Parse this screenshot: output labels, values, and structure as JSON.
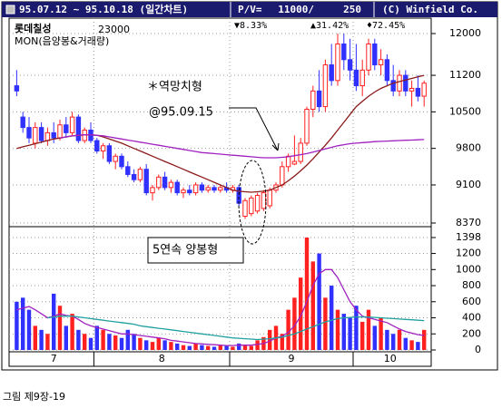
{
  "chart_data": {
    "type": "candlestick",
    "title": "95.07.12 ~ 95.10.18 (일간차트)",
    "pv_label": "P/V=",
    "pv_price": "11000/",
    "pv_volume": "250",
    "copyright": "(C) Winfield Co.",
    "stats": [
      "▼8.33%",
      "▲31.42%",
      "♦72.45%"
    ],
    "stock_name": "롯데칠성",
    "stock_price": "23000",
    "indicator": "MON(음양봉&거래량)",
    "annotations": [
      "＊역망치형",
      "@95.09.15",
      "5연속 양봉형"
    ],
    "caption": "그림 제9장-19",
    "categories": [
      "7",
      null,
      null,
      null,
      null,
      null,
      null,
      null,
      null,
      null,
      null,
      null,
      null,
      "8",
      null,
      null,
      null,
      null,
      null,
      null,
      null,
      null,
      null,
      null,
      null,
      null,
      null,
      null,
      null,
      null,
      null,
      null,
      null,
      null,
      null,
      "9",
      null,
      null,
      null,
      null,
      null,
      null,
      null,
      null,
      null,
      null,
      null,
      null,
      null,
      null,
      null,
      null,
      null,
      null,
      null,
      "10",
      null,
      null,
      null,
      null,
      null,
      null,
      null,
      null,
      null,
      null,
      null
    ],
    "open": [
      11000,
      10400,
      10200,
      9900,
      10200,
      9950,
      10100,
      10000,
      10250,
      10100,
      10400,
      9950,
      10150,
      9950,
      9750,
      9850,
      9550,
      9650,
      9450,
      9300,
      9200,
      9400,
      8950,
      9050,
      9250,
      9050,
      9150,
      8950,
      9000,
      8950,
      9100,
      9000,
      9050,
      9000,
      9050,
      9000,
      9050,
      8500,
      8550,
      8600,
      8650,
      8700,
      9000,
      9100,
      9450,
      9500,
      9550,
      9900,
      10550,
      10900,
      10600,
      11400,
      11100,
      11800,
      11500,
      11300,
      11000,
      11300,
      11800,
      11400,
      11500,
      11100,
      10900,
      11200,
      10900,
      10950,
      10800
    ],
    "high": [
      11300,
      10500,
      10400,
      10300,
      10300,
      10200,
      10300,
      10350,
      10400,
      10500,
      10450,
      10200,
      10300,
      10000,
      9900,
      9900,
      9700,
      9700,
      9550,
      9400,
      9450,
      9500,
      9100,
      9300,
      9350,
      9200,
      9200,
      9050,
      9100,
      9150,
      9150,
      9100,
      9100,
      9100,
      9150,
      9100,
      9100,
      8850,
      8900,
      8950,
      9000,
      9050,
      9150,
      9550,
      9700,
      10050,
      10000,
      10600,
      11000,
      11300,
      11500,
      11800,
      12000,
      12000,
      11900,
      11800,
      11500,
      11900,
      11900,
      11700,
      11600,
      11400,
      11300,
      11300,
      11100,
      11200,
      11100
    ],
    "low": [
      10800,
      10100,
      9900,
      9800,
      9900,
      9850,
      9900,
      9950,
      10000,
      10050,
      9900,
      9900,
      9900,
      9700,
      9600,
      9500,
      9400,
      9400,
      9250,
      9150,
      9150,
      8900,
      8800,
      9000,
      9000,
      8950,
      8900,
      8850,
      8900,
      8900,
      8950,
      8950,
      8950,
      8950,
      8950,
      8950,
      8700,
      8450,
      8500,
      8550,
      8600,
      8650,
      8950,
      9050,
      9350,
      9480,
      9500,
      9850,
      10400,
      10500,
      10500,
      11000,
      11000,
      11300,
      11100,
      10900,
      10800,
      11200,
      11300,
      11200,
      11000,
      10800,
      10800,
      10800,
      10600,
      10700,
      10600
    ],
    "close": [
      10900,
      10200,
      10000,
      10200,
      9950,
      10100,
      10000,
      10250,
      10100,
      10400,
      9950,
      10150,
      9950,
      9750,
      9850,
      9550,
      9650,
      9450,
      9300,
      9200,
      9400,
      8950,
      9050,
      9250,
      9050,
      9150,
      8950,
      9000,
      8950,
      9100,
      9000,
      9050,
      9000,
      9050,
      9000,
      9050,
      8750,
      8800,
      8850,
      8900,
      8950,
      9000,
      9100,
      9450,
      9650,
      9550,
      9900,
      10550,
      10900,
      10600,
      11400,
      11100,
      11800,
      11500,
      11300,
      11000,
      11300,
      11800,
      11400,
      11500,
      11100,
      10900,
      11200,
      10900,
      10950,
      10800,
      11050
    ],
    "volume": [
      600,
      650,
      500,
      300,
      250,
      200,
      700,
      550,
      300,
      450,
      250,
      200,
      150,
      300,
      250,
      200,
      180,
      150,
      250,
      200,
      150,
      120,
      100,
      150,
      120,
      100,
      80,
      60,
      50,
      80,
      60,
      50,
      40,
      60,
      50,
      40,
      80,
      60,
      50,
      120,
      160,
      250,
      300,
      200,
      500,
      650,
      900,
      1398,
      1100,
      1200,
      650,
      800,
      500,
      450,
      400,
      550,
      350,
      500,
      300,
      400,
      250,
      200,
      250,
      150,
      120,
      100,
      250
    ],
    "ma": [
      {
        "color": "#8b1a1a",
        "values": [
          9800,
          9830,
          9860,
          9890,
          9920,
          9950,
          9980,
          10000,
          10020,
          10040,
          10050,
          10060,
          10060,
          10050,
          10020,
          9980,
          9940,
          9900,
          9850,
          9800,
          9750,
          9700,
          9650,
          9600,
          9550,
          9500,
          9450,
          9400,
          9350,
          9300,
          9250,
          9200,
          9150,
          9100,
          9050,
          9000,
          8980,
          8970,
          8960,
          8970,
          8980,
          9000,
          9050,
          9100,
          9180,
          9270,
          9370,
          9480,
          9600,
          9730,
          9860,
          10000,
          10150,
          10300,
          10450,
          10600,
          10700,
          10800,
          10880,
          10950,
          11000,
          11050,
          11080,
          11110,
          11140,
          11170,
          11200
        ]
      },
      {
        "color": "#a020c0",
        "values": [
          null,
          null,
          null,
          null,
          null,
          null,
          null,
          10000,
          10020,
          10040,
          10050,
          10060,
          10060,
          10050,
          10040,
          10020,
          10000,
          9980,
          9960,
          9940,
          9920,
          9900,
          9880,
          9860,
          9840,
          9820,
          9800,
          9780,
          9760,
          9740,
          9720,
          9710,
          9700,
          9690,
          9680,
          9670,
          9660,
          9650,
          9640,
          9630,
          9620,
          9620,
          9620,
          9630,
          9640,
          9660,
          9680,
          9700,
          9730,
          9760,
          9790,
          9820,
          9850,
          9870,
          9890,
          9900,
          9910,
          9920,
          9930,
          9935,
          9940,
          9945,
          9950,
          9955,
          9960,
          9965,
          9970
        ]
      }
    ],
    "volume_ma": [
      {
        "color": "#a020c0",
        "values": [
          500,
          520,
          540,
          500,
          450,
          400,
          420,
          450,
          430,
          420,
          380,
          330,
          300,
          280,
          260,
          240,
          220,
          200,
          200,
          190,
          180,
          170,
          160,
          150,
          140,
          120,
          110,
          100,
          90,
          80,
          75,
          70,
          65,
          60,
          55,
          55,
          60,
          60,
          60,
          70,
          80,
          110,
          150,
          170,
          220,
          300,
          420,
          600,
          800,
          950,
          1000,
          1000,
          900,
          750,
          600,
          500,
          420,
          400,
          380,
          360,
          340,
          300,
          260,
          230,
          210,
          190,
          180
        ]
      },
      {
        "color": "#20a0a0",
        "values": [
          null,
          null,
          null,
          null,
          null,
          400,
          410,
          420,
          420,
          420,
          410,
          400,
          390,
          380,
          370,
          360,
          350,
          340,
          330,
          320,
          300,
          290,
          280,
          270,
          260,
          250,
          240,
          230,
          220,
          210,
          200,
          190,
          180,
          170,
          160,
          150,
          145,
          140,
          135,
          130,
          135,
          140,
          150,
          160,
          180,
          200,
          230,
          260,
          290,
          320,
          350,
          370,
          390,
          400,
          405,
          410,
          410,
          410,
          405,
          400,
          395,
          390,
          385,
          380,
          375,
          370,
          365
        ]
      }
    ],
    "up_color": "#ff2020",
    "down_color": "#3030ff",
    "ylim": [
      8370,
      12000
    ],
    "yticks": [
      8370,
      9100,
      9800,
      10500,
      11200,
      12000
    ],
    "y2lim": [
      0,
      1398
    ],
    "y2ticks": [
      0,
      200,
      400,
      600,
      800,
      1000,
      1200,
      1398
    ],
    "grid": true
  }
}
